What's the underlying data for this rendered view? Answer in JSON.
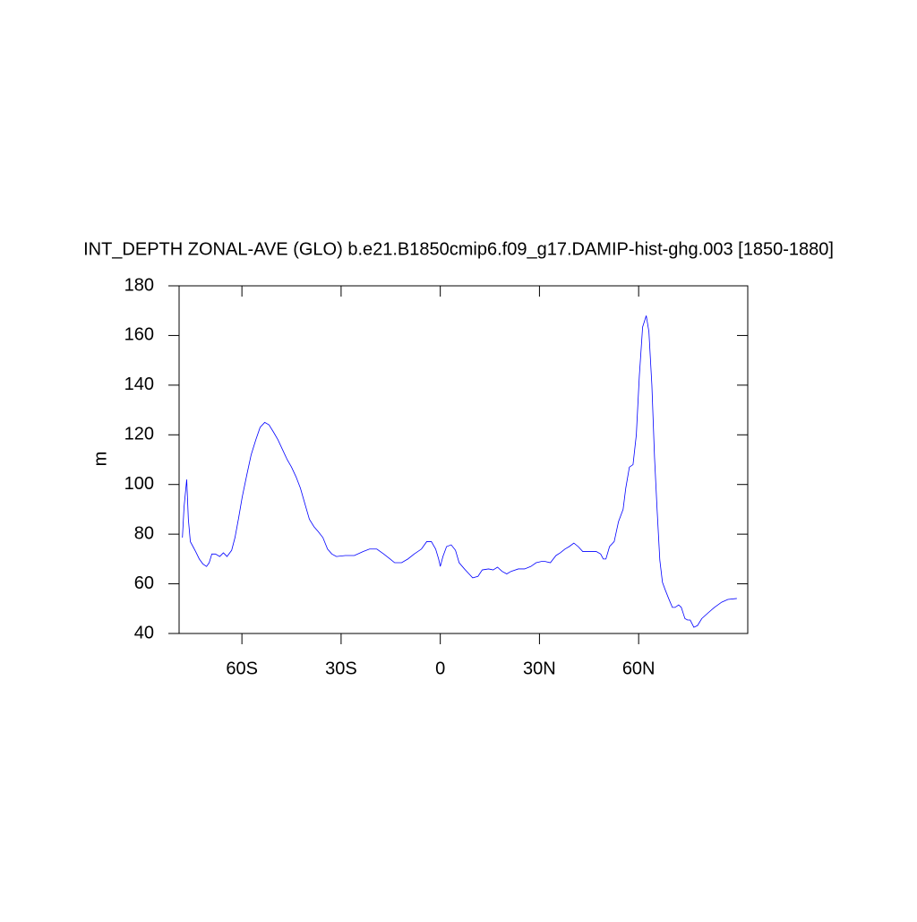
{
  "chart_data": {
    "type": "line",
    "title": "INT_DEPTH ZONAL-AVE (GLO) b.e21.B1850cmip6.f09_g17.DAMIP-hist-ghg.003 [1850-1880]",
    "ylabel": "m",
    "x": [
      -78.0,
      -77.5,
      -76.7,
      -76.2,
      -75.6,
      -74.8,
      -74.0,
      -72.9,
      -71.8,
      -70.7,
      -69.9,
      -69.1,
      -68.0,
      -66.7,
      -65.6,
      -64.5,
      -63.1,
      -62.1,
      -61.0,
      -59.9,
      -58.5,
      -57.2,
      -55.8,
      -54.5,
      -53.1,
      -51.8,
      -50.4,
      -49.1,
      -47.7,
      -46.3,
      -45.0,
      -43.6,
      -42.3,
      -40.9,
      -39.6,
      -38.2,
      -36.9,
      -35.5,
      -34.1,
      -32.8,
      -31.4,
      -28.7,
      -26.0,
      -23.3,
      -21.4,
      -19.2,
      -17.1,
      -15.2,
      -13.8,
      -11.7,
      -9.8,
      -7.9,
      -5.7,
      -4.1,
      -2.7,
      -1.4,
      -0.5,
      0,
      0.8,
      1.9,
      3.3,
      4.6,
      5.7,
      7.3,
      8.7,
      9.8,
      11.4,
      12.7,
      14.6,
      16.0,
      17.3,
      18.7,
      20.1,
      21.4,
      23.6,
      25.5,
      27.4,
      29.0,
      30.6,
      31.7,
      33.3,
      35.0,
      36.3,
      37.7,
      39.0,
      40.4,
      41.7,
      43.1,
      45.3,
      47.2,
      48.5,
      49.3,
      50.1,
      51.2,
      52.6,
      53.9,
      55.3,
      56.1,
      57.2,
      58.3,
      59.3,
      60.2,
      61.2,
      62.3,
      63.1,
      64.0,
      64.8,
      65.6,
      66.4,
      67.2,
      68.0,
      69.1,
      70.2,
      71.0,
      72.1,
      72.9,
      74.0,
      74.8,
      75.6,
      76.7,
      77.8,
      79.1,
      81.0,
      82.9,
      85.1,
      87.0,
      89.7
    ],
    "series": [
      {
        "color": "#0000ff",
        "values": [
          78.6,
          91,
          102,
          86,
          77,
          75,
          73,
          70,
          68,
          67,
          68.5,
          72,
          72,
          71,
          72.5,
          71,
          73.5,
          78.6,
          86.5,
          95,
          104,
          112,
          118,
          123,
          125,
          124,
          121,
          118,
          114,
          110,
          107,
          103,
          98.5,
          92,
          86,
          83,
          81,
          78.6,
          74,
          72,
          71,
          71.4,
          71.4,
          73,
          74,
          74,
          72,
          70,
          68.5,
          68.5,
          70,
          72,
          74,
          77,
          77,
          74,
          70,
          67,
          71,
          75,
          75.7,
          73.5,
          68.5,
          66,
          64,
          62.4,
          63,
          65.6,
          66,
          65.6,
          66.7,
          65,
          64,
          65,
          66,
          66,
          67,
          68.5,
          69,
          69,
          68.5,
          71.4,
          72.5,
          74,
          75,
          76.4,
          75,
          73,
          73,
          73,
          72,
          70,
          70,
          75,
          77,
          85,
          90,
          98.5,
          107,
          108,
          120,
          143.6,
          163.4,
          168,
          161.6,
          140,
          111,
          89.4,
          69.6,
          60.6,
          57.7,
          54,
          50.5,
          50.5,
          51.5,
          50.5,
          46,
          45.4,
          45.4,
          42.5,
          43.2,
          46,
          48.3,
          50.5,
          52.6,
          53.7,
          54.1
        ]
      }
    ],
    "xlim": [
      -79,
      93
    ],
    "xticks": [
      {
        "value": -60,
        "label": "60S"
      },
      {
        "value": -30,
        "label": "30S"
      },
      0,
      {
        "value": 30,
        "label": "30N"
      },
      {
        "value": 60,
        "label": "60N"
      }
    ],
    "ylim": [
      40,
      180
    ],
    "yticks": [
      40,
      60,
      80,
      100,
      120,
      140,
      160,
      180
    ]
  }
}
